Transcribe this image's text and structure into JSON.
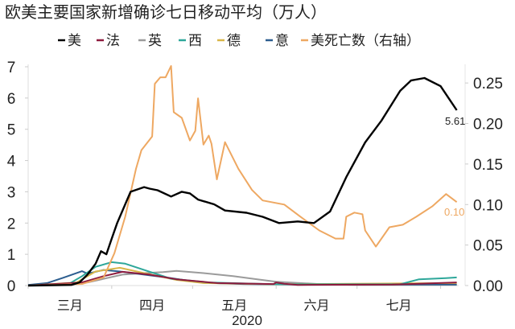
{
  "chart_data": {
    "type": "line",
    "title": "欧美主要国家新增确诊七日移动平均（万人）",
    "xlabel": "2020",
    "x_tick_labels": [
      "三月",
      "四月",
      "五月",
      "六月",
      "七月"
    ],
    "y_left": {
      "ylim": [
        0,
        7
      ],
      "ticks": [
        "0",
        "1",
        "2",
        "3",
        "4",
        "5",
        "6",
        "7"
      ]
    },
    "y_right": {
      "ylim": [
        0,
        0.27
      ],
      "ticks": [
        "0.00",
        "0.05",
        "0.10",
        "0.15",
        "0.20",
        "0.25"
      ]
    },
    "grid": false,
    "legend_position": "top",
    "annotations": {
      "us_last": "5.61",
      "us_deaths_last": "0.10"
    },
    "series": [
      {
        "name": "美",
        "axis": "left",
        "color": "#000000",
        "points": [
          [
            "2020-03-01",
            0
          ],
          [
            "2020-03-17",
            0.02
          ],
          [
            "2020-03-20",
            0.1
          ],
          [
            "2020-03-23",
            0.35
          ],
          [
            "2020-03-26",
            0.7
          ],
          [
            "2020-03-28",
            1.1
          ],
          [
            "2020-03-30",
            1.0
          ],
          [
            "2020-04-01",
            1.5
          ],
          [
            "2020-04-03",
            2.0
          ],
          [
            "2020-04-06",
            2.6
          ],
          [
            "2020-04-08",
            3.0
          ],
          [
            "2020-04-13",
            3.15
          ],
          [
            "2020-04-15",
            3.1
          ],
          [
            "2020-04-18",
            3.05
          ],
          [
            "2020-04-23",
            2.85
          ],
          [
            "2020-04-27",
            3.0
          ],
          [
            "2020-04-30",
            2.95
          ],
          [
            "2020-05-03",
            2.75
          ],
          [
            "2020-05-09",
            2.6
          ],
          [
            "2020-05-13",
            2.4
          ],
          [
            "2020-05-21",
            2.33
          ],
          [
            "2020-05-27",
            2.2
          ],
          [
            "2020-06-02",
            2.0
          ],
          [
            "2020-06-09",
            2.05
          ],
          [
            "2020-06-15",
            2.0
          ],
          [
            "2020-06-21",
            2.37
          ],
          [
            "2020-06-27",
            3.47
          ],
          [
            "2020-07-04",
            4.58
          ],
          [
            "2020-07-10",
            5.27
          ],
          [
            "2020-07-17",
            6.23
          ],
          [
            "2020-07-21",
            6.56
          ],
          [
            "2020-07-26",
            6.64
          ],
          [
            "2020-08-01",
            6.38
          ],
          [
            "2020-08-07",
            5.61
          ]
        ]
      },
      {
        "name": "法",
        "axis": "left",
        "color": "#8e1b3e",
        "points": [
          [
            "2020-03-01",
            0
          ],
          [
            "2020-03-21",
            0.1
          ],
          [
            "2020-03-29",
            0.3
          ],
          [
            "2020-04-05",
            0.44
          ],
          [
            "2020-04-15",
            0.35
          ],
          [
            "2020-04-25",
            0.2
          ],
          [
            "2020-05-10",
            0.08
          ],
          [
            "2020-05-31",
            0.05
          ],
          [
            "2020-06-01",
            0.1
          ],
          [
            "2020-06-04",
            0.06
          ],
          [
            "2020-06-09",
            0.02
          ],
          [
            "2020-07-14",
            0.03
          ],
          [
            "2020-08-07",
            0.1
          ]
        ]
      },
      {
        "name": "英",
        "axis": "left",
        "color": "#9b9b9b",
        "points": [
          [
            "2020-03-01",
            0
          ],
          [
            "2020-03-23",
            0.1
          ],
          [
            "2020-04-05",
            0.35
          ],
          [
            "2020-04-13",
            0.4
          ],
          [
            "2020-04-20",
            0.43
          ],
          [
            "2020-04-25",
            0.47
          ],
          [
            "2020-05-05",
            0.4
          ],
          [
            "2020-05-16",
            0.3
          ],
          [
            "2020-05-25",
            0.2
          ],
          [
            "2020-06-01",
            0.12
          ],
          [
            "2020-06-17",
            0.05
          ],
          [
            "2020-06-30",
            0.02
          ],
          [
            "2020-08-07",
            0.02
          ]
        ]
      },
      {
        "name": "西",
        "axis": "left",
        "color": "#2ea79a",
        "points": [
          [
            "2020-03-01",
            0
          ],
          [
            "2020-03-16",
            0.05
          ],
          [
            "2020-03-21",
            0.3
          ],
          [
            "2020-03-26",
            0.6
          ],
          [
            "2020-04-01",
            0.75
          ],
          [
            "2020-04-06",
            0.7
          ],
          [
            "2020-04-13",
            0.5
          ],
          [
            "2020-04-23",
            0.22
          ],
          [
            "2020-05-07",
            0.1
          ],
          [
            "2020-05-31",
            0.04
          ],
          [
            "2020-07-17",
            0.04
          ],
          [
            "2020-07-24",
            0.2
          ],
          [
            "2020-08-03",
            0.24
          ],
          [
            "2020-08-07",
            0.26
          ]
        ]
      },
      {
        "name": "德",
        "axis": "left",
        "color": "#d8b648",
        "points": [
          [
            "2020-03-01",
            0
          ],
          [
            "2020-03-19",
            0.1
          ],
          [
            "2020-03-26",
            0.45
          ],
          [
            "2020-04-04",
            0.57
          ],
          [
            "2020-04-13",
            0.4
          ],
          [
            "2020-04-25",
            0.18
          ],
          [
            "2020-05-05",
            0.08
          ],
          [
            "2020-05-31",
            0.04
          ],
          [
            "2020-08-07",
            0.08
          ]
        ]
      },
      {
        "name": "意",
        "axis": "left",
        "color": "#2c5d8f",
        "points": [
          [
            "2020-03-01",
            0.02
          ],
          [
            "2020-03-08",
            0.08
          ],
          [
            "2020-03-14",
            0.25
          ],
          [
            "2020-03-21",
            0.46
          ],
          [
            "2020-03-23",
            0.38
          ],
          [
            "2020-03-29",
            0.5
          ],
          [
            "2020-04-04",
            0.45
          ],
          [
            "2020-04-13",
            0.35
          ],
          [
            "2020-04-22",
            0.25
          ],
          [
            "2020-05-02",
            0.12
          ],
          [
            "2020-05-11",
            0.07
          ],
          [
            "2020-05-20",
            0.05
          ],
          [
            "2020-06-09",
            0.03
          ],
          [
            "2020-08-07",
            0.03
          ]
        ]
      },
      {
        "name": "美死亡数（右轴）",
        "axis": "right",
        "color": "#eea862",
        "points": [
          [
            "2020-03-01",
            0
          ],
          [
            "2020-03-21",
            0.002
          ],
          [
            "2020-03-29",
            0.01
          ],
          [
            "2020-04-02",
            0.04
          ],
          [
            "2020-04-06",
            0.085
          ],
          [
            "2020-04-10",
            0.144
          ],
          [
            "2020-04-12",
            0.167
          ],
          [
            "2020-04-16",
            0.184
          ],
          [
            "2020-04-17",
            0.249
          ],
          [
            "2020-04-19",
            0.257
          ],
          [
            "2020-04-21",
            0.257
          ],
          [
            "2020-04-23",
            0.271
          ],
          [
            "2020-04-24",
            0.214
          ],
          [
            "2020-04-27",
            0.207
          ],
          [
            "2020-04-30",
            0.179
          ],
          [
            "2020-05-02",
            0.191
          ],
          [
            "2020-05-03",
            0.231
          ],
          [
            "2020-05-05",
            0.174
          ],
          [
            "2020-05-07",
            0.185
          ],
          [
            "2020-05-08",
            0.175
          ],
          [
            "2020-05-10",
            0.131
          ],
          [
            "2020-05-13",
            0.177
          ],
          [
            "2020-05-18",
            0.144
          ],
          [
            "2020-05-23",
            0.118
          ],
          [
            "2020-05-27",
            0.105
          ],
          [
            "2020-06-04",
            0.1
          ],
          [
            "2020-06-10",
            0.085
          ],
          [
            "2020-06-17",
            0.068
          ],
          [
            "2020-06-23",
            0.058
          ],
          [
            "2020-06-26",
            0.058
          ],
          [
            "2020-06-27",
            0.085
          ],
          [
            "2020-06-30",
            0.09
          ],
          [
            "2020-07-03",
            0.088
          ],
          [
            "2020-07-04",
            0.068
          ],
          [
            "2020-07-08",
            0.048
          ],
          [
            "2020-07-13",
            0.072
          ],
          [
            "2020-07-18",
            0.075
          ],
          [
            "2020-07-23",
            0.085
          ],
          [
            "2020-07-29",
            0.098
          ],
          [
            "2020-08-03",
            0.113
          ],
          [
            "2020-08-07",
            0.103
          ]
        ]
      }
    ]
  }
}
